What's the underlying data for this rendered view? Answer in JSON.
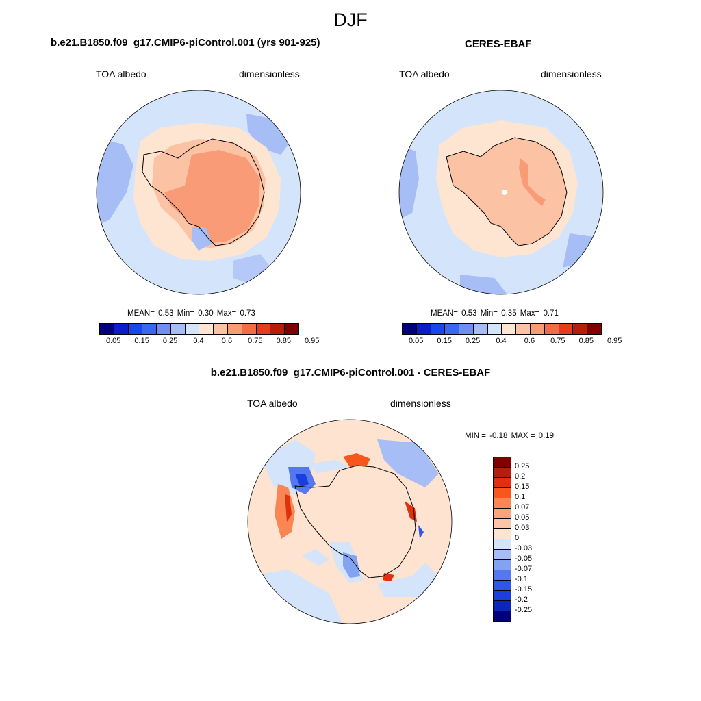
{
  "season": "DJF",
  "panels": [
    {
      "title": "b.e21.B1850.f09_g17.CMIP6-piControl.001 (yrs 901-925)",
      "left_label": "TOA albedo",
      "right_label": "dimensionless",
      "stats": {
        "mean_label": "MEAN=",
        "mean": "0.53",
        "min_label": "Min=",
        "min": "0.30",
        "max_label": "Max=",
        "max": "0.73"
      }
    },
    {
      "title": "CERES-EBAF",
      "left_label": "TOA albedo",
      "right_label": "dimensionless",
      "stats": {
        "mean_label": "MEAN=",
        "mean": "0.53",
        "min_label": "Min=",
        "min": "0.35",
        "max_label": "Max=",
        "max": "0.71"
      }
    }
  ],
  "diff_panel": {
    "title": "b.e21.B1850.f09_g17.CMIP6-piControl.001 - CERES-EBAF",
    "left_label": "TOA albedo",
    "right_label": "dimensionless",
    "stats": {
      "min_label": "MIN =",
      "min": "-0.18",
      "max_label": "MAX =",
      "max": "0.19"
    }
  },
  "colorbar": {
    "colors": [
      "#00007f",
      "#0a1ec8",
      "#1b45ea",
      "#3c66f2",
      "#6e8ef4",
      "#a6bdf5",
      "#d4e4fa",
      "#fde5d2",
      "#fbc2a4",
      "#f89b76",
      "#f46d42",
      "#e53d1c",
      "#b81c0e",
      "#7f0000"
    ],
    "labels": [
      "0.05",
      "0.15",
      "0.25",
      "0.4",
      "0.6",
      "0.75",
      "0.85",
      "0.95"
    ]
  },
  "diff_colorbar": {
    "colors": [
      "#7f0000",
      "#b81c0e",
      "#e03010",
      "#f8561c",
      "#fa8653",
      "#fba47a",
      "#fbc6a8",
      "#fde3d0",
      "#d4e4fa",
      "#a6bdf5",
      "#83a2f2",
      "#5478f0",
      "#2c57ea",
      "#1b3fdc",
      "#0c27b8",
      "#00007f"
    ],
    "labels": [
      "0.25",
      "0.2",
      "0.15",
      "0.1",
      "0.07",
      "0.05",
      "0.03",
      "0",
      "-0.03",
      "-0.05",
      "-0.07",
      "-0.1",
      "-0.15",
      "-0.2",
      "-0.25"
    ]
  }
}
